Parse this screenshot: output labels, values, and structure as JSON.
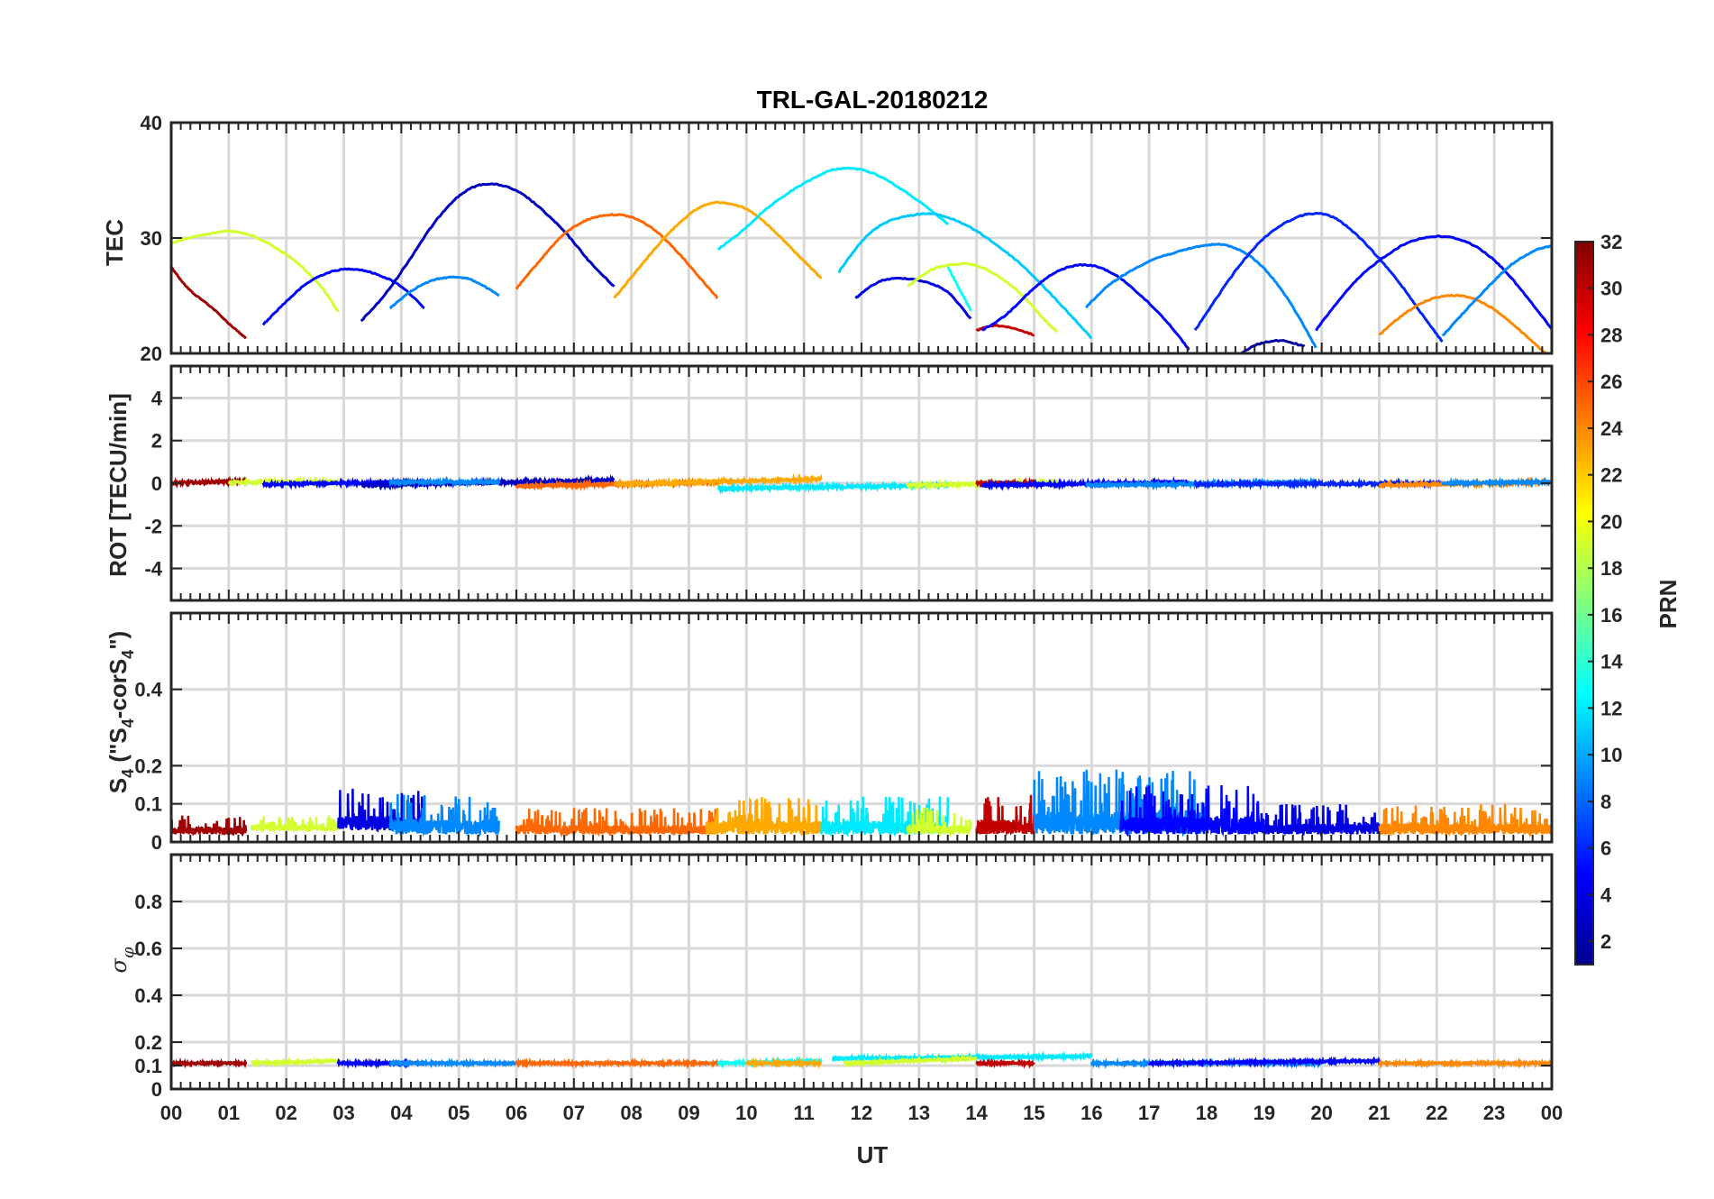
{
  "chart_data": {
    "type": "line",
    "title": "TRL-GAL-20180212",
    "xlabel": "UT",
    "x_tick_labels": [
      "00",
      "01",
      "02",
      "03",
      "04",
      "05",
      "06",
      "07",
      "08",
      "09",
      "10",
      "11",
      "12",
      "13",
      "14",
      "15",
      "16",
      "17",
      "18",
      "19",
      "20",
      "21",
      "22",
      "23",
      "00"
    ],
    "xlim": [
      0,
      24
    ],
    "colorbar": {
      "label": "PRN",
      "range": [
        1,
        32
      ],
      "tick_labels": [
        "2",
        "4",
        "6",
        "8",
        "10",
        "12",
        "14",
        "16",
        "18",
        "20",
        "22",
        "24",
        "26",
        "28",
        "30",
        "32"
      ],
      "colormap": "jet"
    },
    "panels": [
      {
        "name": "tec",
        "ylabel": "TEC",
        "ylim": [
          20,
          40
        ],
        "y_ticks": [
          20,
          30,
          40
        ],
        "y_tick_labels": [
          "20",
          "30",
          "40"
        ],
        "series": [
          {
            "prn": 31,
            "x": [
              0.0,
              0.3,
              0.7,
              1.0,
              1.3
            ],
            "y": [
              27.5,
              25.6,
              24.0,
              22.6,
              21.3
            ]
          },
          {
            "prn": 19,
            "x": [
              0.0,
              0.3,
              0.7,
              1.0,
              1.4,
              1.8,
              2.2,
              2.6,
              2.9
            ],
            "y": [
              29.5,
              30.0,
              30.4,
              30.6,
              30.2,
              29.2,
              27.8,
              25.8,
              23.6
            ]
          },
          {
            "prn": 5,
            "x": [
              1.6,
              2.0,
              2.4,
              2.8,
              3.2,
              3.6,
              4.0,
              4.4
            ],
            "y": [
              22.5,
              24.5,
              26.2,
              27.1,
              27.3,
              26.8,
              25.8,
              23.9
            ]
          },
          {
            "prn": 3,
            "x": [
              3.3,
              3.7,
              4.1,
              4.5,
              4.9,
              5.3,
              5.7,
              6.1,
              6.5,
              6.9,
              7.3,
              7.7
            ],
            "y": [
              22.8,
              25.0,
              27.8,
              30.8,
              33.2,
              34.5,
              34.6,
              33.8,
              32.2,
              30.2,
              27.8,
              25.8
            ]
          },
          {
            "prn": 9,
            "x": [
              3.8,
              4.2,
              4.6,
              5.0,
              5.3,
              5.7
            ],
            "y": [
              23.9,
              25.5,
              26.4,
              26.6,
              26.2,
              25.0
            ]
          },
          {
            "prn": 25,
            "x": [
              6.0,
              6.4,
              6.8,
              7.2,
              7.6,
              8.0,
              8.4,
              8.8,
              9.2,
              9.5
            ],
            "y": [
              25.6,
              28.0,
              30.2,
              31.5,
              32.0,
              31.8,
              30.7,
              28.8,
              26.5,
              24.8
            ]
          },
          {
            "prn": 23,
            "x": [
              7.7,
              8.1,
              8.5,
              8.9,
              9.3,
              9.7,
              10.1,
              10.5,
              10.9,
              11.3
            ],
            "y": [
              24.8,
              27.2,
              29.6,
              31.6,
              32.9,
              33.0,
              32.2,
              30.5,
              28.5,
              26.5
            ]
          },
          {
            "prn": 12,
            "x": [
              9.5,
              9.9,
              10.3,
              10.7,
              11.1,
              11.5,
              11.9,
              12.3,
              12.7,
              13.1,
              13.5
            ],
            "y": [
              29.0,
              30.5,
              32.3,
              33.8,
              35.0,
              35.9,
              36.0,
              35.4,
              34.2,
              32.8,
              31.2
            ]
          },
          {
            "prn": 11,
            "x": [
              11.6,
              12.0,
              12.4,
              12.8,
              13.2,
              13.6,
              14.0,
              14.4,
              14.8,
              15.2,
              15.6,
              16.0
            ],
            "y": [
              27.0,
              29.7,
              31.3,
              31.9,
              32.1,
              31.6,
              30.6,
              29.2,
              27.6,
              25.6,
              23.5,
              21.3
            ]
          },
          {
            "prn": 4,
            "x": [
              11.9,
              12.3,
              12.7,
              13.1,
              13.5,
              13.9
            ],
            "y": [
              24.8,
              26.2,
              26.5,
              26.2,
              25.3,
              23.0
            ]
          },
          {
            "prn": 19,
            "x": [
              12.8,
              13.2,
              13.6,
              14.0,
              14.4,
              14.8,
              15.2,
              15.4
            ],
            "y": [
              25.8,
              27.2,
              27.7,
              27.6,
              26.6,
              25.0,
              22.8,
              21.9
            ]
          },
          {
            "prn": 13,
            "x": [
              13.5,
              13.7,
              13.9
            ],
            "y": [
              27.5,
              25.6,
              23.7
            ]
          },
          {
            "prn": 30,
            "x": [
              14.0,
              14.3,
              14.6,
              15.0
            ],
            "y": [
              22.0,
              22.4,
              22.2,
              21.6
            ]
          },
          {
            "prn": 5,
            "x": [
              14.1,
              14.5,
              14.9,
              15.3,
              15.7,
              16.1,
              16.5,
              16.9,
              17.3,
              17.7
            ],
            "y": [
              22.0,
              23.3,
              25.2,
              26.8,
              27.6,
              27.5,
              26.5,
              24.8,
              22.8,
              20.3
            ]
          },
          {
            "prn": 9,
            "x": [
              15.9,
              16.3,
              16.7,
              17.1,
              17.5,
              17.9,
              18.3,
              18.7,
              19.1,
              19.5,
              19.9
            ],
            "y": [
              24.0,
              25.9,
              27.2,
              28.2,
              28.8,
              29.3,
              29.4,
              28.6,
              26.8,
              24.0,
              20.5
            ]
          },
          {
            "prn": 6,
            "x": [
              17.8,
              18.2,
              18.6,
              19.0,
              19.4,
              19.8,
              20.2,
              20.6,
              21.0,
              21.4,
              21.8,
              22.1
            ],
            "y": [
              22.0,
              25.0,
              27.8,
              30.0,
              31.4,
              32.1,
              31.8,
              30.3,
              28.2,
              25.8,
              23.0,
              21.0
            ]
          },
          {
            "prn": 2,
            "x": [
              18.6,
              18.9,
              19.3,
              19.7
            ],
            "y": [
              20.0,
              20.8,
              21.1,
              20.6
            ]
          },
          {
            "prn": 5,
            "x": [
              19.9,
              20.3,
              20.7,
              21.1,
              21.5,
              21.9,
              22.3,
              22.7,
              23.1,
              23.5,
              24.0
            ],
            "y": [
              22.0,
              24.6,
              26.8,
              28.4,
              29.6,
              30.1,
              30.0,
              29.2,
              27.6,
              25.3,
              22.1
            ]
          },
          {
            "prn": 24,
            "x": [
              21.0,
              21.4,
              21.8,
              22.2,
              22.6,
              23.0,
              23.4,
              23.8,
              24.0
            ],
            "y": [
              21.6,
              23.3,
              24.5,
              25.0,
              24.8,
              23.8,
              22.2,
              20.4,
              19.6
            ]
          },
          {
            "prn": 9,
            "x": [
              22.1,
              22.5,
              22.9,
              23.3,
              23.7,
              24.0
            ],
            "y": [
              21.5,
              23.7,
              25.8,
              27.7,
              28.9,
              29.3
            ]
          }
        ]
      },
      {
        "name": "rot",
        "ylabel": "ROT [TECU/min]",
        "ylim": [
          -5.5,
          5.5
        ],
        "y_ticks": [
          -4,
          -2,
          0,
          2,
          4
        ],
        "y_tick_labels": [
          "-4",
          "-2",
          "0",
          "2",
          "4"
        ],
        "series": [
          {
            "prn": 31,
            "x": [
              0.0,
              1.3
            ],
            "y": [
              0.0,
              0.1
            ]
          },
          {
            "prn": 19,
            "x": [
              1.0,
              2.9
            ],
            "y": [
              0.05,
              0.05
            ]
          },
          {
            "prn": 5,
            "x": [
              1.6,
              4.4
            ],
            "y": [
              -0.05,
              0.05
            ]
          },
          {
            "prn": 3,
            "x": [
              3.3,
              7.7
            ],
            "y": [
              -0.1,
              0.15
            ]
          },
          {
            "prn": 9,
            "x": [
              3.8,
              5.7
            ],
            "y": [
              0.05,
              0.05
            ]
          },
          {
            "prn": 25,
            "x": [
              6.0,
              9.5
            ],
            "y": [
              -0.15,
              0.05
            ]
          },
          {
            "prn": 23,
            "x": [
              7.7,
              11.3
            ],
            "y": [
              -0.05,
              0.2
            ]
          },
          {
            "prn": 12,
            "x": [
              9.5,
              13.5
            ],
            "y": [
              -0.25,
              -0.1
            ]
          },
          {
            "prn": 19,
            "x": [
              12.8,
              15.4
            ],
            "y": [
              -0.1,
              0.05
            ]
          },
          {
            "prn": 30,
            "x": [
              14.0,
              15.0
            ],
            "y": [
              0.0,
              0.0
            ]
          },
          {
            "prn": 5,
            "x": [
              14.1,
              17.7
            ],
            "y": [
              -0.1,
              0.05
            ]
          },
          {
            "prn": 9,
            "x": [
              15.9,
              19.9
            ],
            "y": [
              -0.1,
              0.05
            ]
          },
          {
            "prn": 6,
            "x": [
              17.8,
              22.1
            ],
            "y": [
              -0.05,
              0.0
            ]
          },
          {
            "prn": 24,
            "x": [
              21.0,
              24.0
            ],
            "y": [
              -0.1,
              0.05
            ]
          },
          {
            "prn": 9,
            "x": [
              22.1,
              24.0
            ],
            "y": [
              0.0,
              0.05
            ]
          }
        ]
      },
      {
        "name": "s4",
        "ylabel": "S4 (\"S4-corS4\")",
        "ylabel_main": "S",
        "ylabel_sub": "4",
        "ylabel_open": " (\"S",
        "ylabel_mid": "-corS",
        "ylabel_close": "\")",
        "ylim": [
          0,
          0.6
        ],
        "y_ticks": [
          0,
          0.1,
          0.2,
          0.4
        ],
        "y_tick_labels": [
          "0",
          "0.1",
          "0.2",
          "0.4"
        ],
        "series": [
          {
            "prn": 31,
            "x": [
              0.0,
              1.3
            ],
            "y": [
              0.02,
              0.07
            ]
          },
          {
            "prn": 19,
            "x": [
              1.4,
              2.9
            ],
            "y": [
              0.03,
              0.07
            ]
          },
          {
            "prn": 4,
            "x": [
              2.9,
              4.4
            ],
            "y": [
              0.03,
              0.14
            ]
          },
          {
            "prn": 9,
            "x": [
              3.8,
              5.7
            ],
            "y": [
              0.02,
              0.13
            ]
          },
          {
            "prn": 25,
            "x": [
              6.0,
              9.5
            ],
            "y": [
              0.02,
              0.09
            ]
          },
          {
            "prn": 23,
            "x": [
              9.3,
              11.3
            ],
            "y": [
              0.02,
              0.12
            ]
          },
          {
            "prn": 12,
            "x": [
              11.3,
              13.5
            ],
            "y": [
              0.02,
              0.12
            ]
          },
          {
            "prn": 19,
            "x": [
              12.8,
              13.9
            ],
            "y": [
              0.02,
              0.09
            ]
          },
          {
            "prn": 30,
            "x": [
              14.0,
              15.0
            ],
            "y": [
              0.02,
              0.13
            ]
          },
          {
            "prn": 9,
            "x": [
              15.0,
              18.0
            ],
            "y": [
              0.02,
              0.19
            ]
          },
          {
            "prn": 5,
            "x": [
              16.5,
              19.0
            ],
            "y": [
              0.02,
              0.15
            ]
          },
          {
            "prn": 4,
            "x": [
              19.0,
              21.0
            ],
            "y": [
              0.02,
              0.1
            ]
          },
          {
            "prn": 24,
            "x": [
              21.0,
              24.0
            ],
            "y": [
              0.02,
              0.1
            ]
          }
        ]
      },
      {
        "name": "sigma-phi",
        "ylabel": "σφ",
        "ylabel_sigma": "σ",
        "ylabel_phi": "φ",
        "ylim": [
          0,
          1
        ],
        "y_ticks": [
          0,
          0.1,
          0.2,
          0.4,
          0.6,
          0.8
        ],
        "y_tick_labels": [
          "0",
          "0.1",
          "0.2",
          "0.4",
          "0.6",
          "0.8"
        ],
        "series": [
          {
            "prn": 31,
            "x": [
              0.0,
              1.3
            ],
            "y": [
              0.11,
              0.11
            ]
          },
          {
            "prn": 19,
            "x": [
              1.4,
              2.9
            ],
            "y": [
              0.11,
              0.12
            ]
          },
          {
            "prn": 5,
            "x": [
              2.9,
              4.4
            ],
            "y": [
              0.11,
              0.11
            ]
          },
          {
            "prn": 9,
            "x": [
              3.8,
              6.0
            ],
            "y": [
              0.11,
              0.11
            ]
          },
          {
            "prn": 25,
            "x": [
              6.0,
              9.5
            ],
            "y": [
              0.11,
              0.11
            ]
          },
          {
            "prn": 13,
            "x": [
              9.5,
              11.3
            ],
            "y": [
              0.11,
              0.12
            ]
          },
          {
            "prn": 23,
            "x": [
              10.0,
              11.3
            ],
            "y": [
              0.11,
              0.11
            ]
          },
          {
            "prn": 12,
            "x": [
              11.5,
              16.0
            ],
            "y": [
              0.13,
              0.14
            ]
          },
          {
            "prn": 19,
            "x": [
              11.7,
              14.0
            ],
            "y": [
              0.11,
              0.13
            ]
          },
          {
            "prn": 30,
            "x": [
              14.0,
              15.0
            ],
            "y": [
              0.11,
              0.11
            ]
          },
          {
            "prn": 9,
            "x": [
              16.0,
              20.0
            ],
            "y": [
              0.11,
              0.11
            ]
          },
          {
            "prn": 5,
            "x": [
              17.0,
              21.0
            ],
            "y": [
              0.11,
              0.12
            ]
          },
          {
            "prn": 24,
            "x": [
              21.0,
              24.0
            ],
            "y": [
              0.11,
              0.11
            ]
          }
        ]
      }
    ]
  }
}
